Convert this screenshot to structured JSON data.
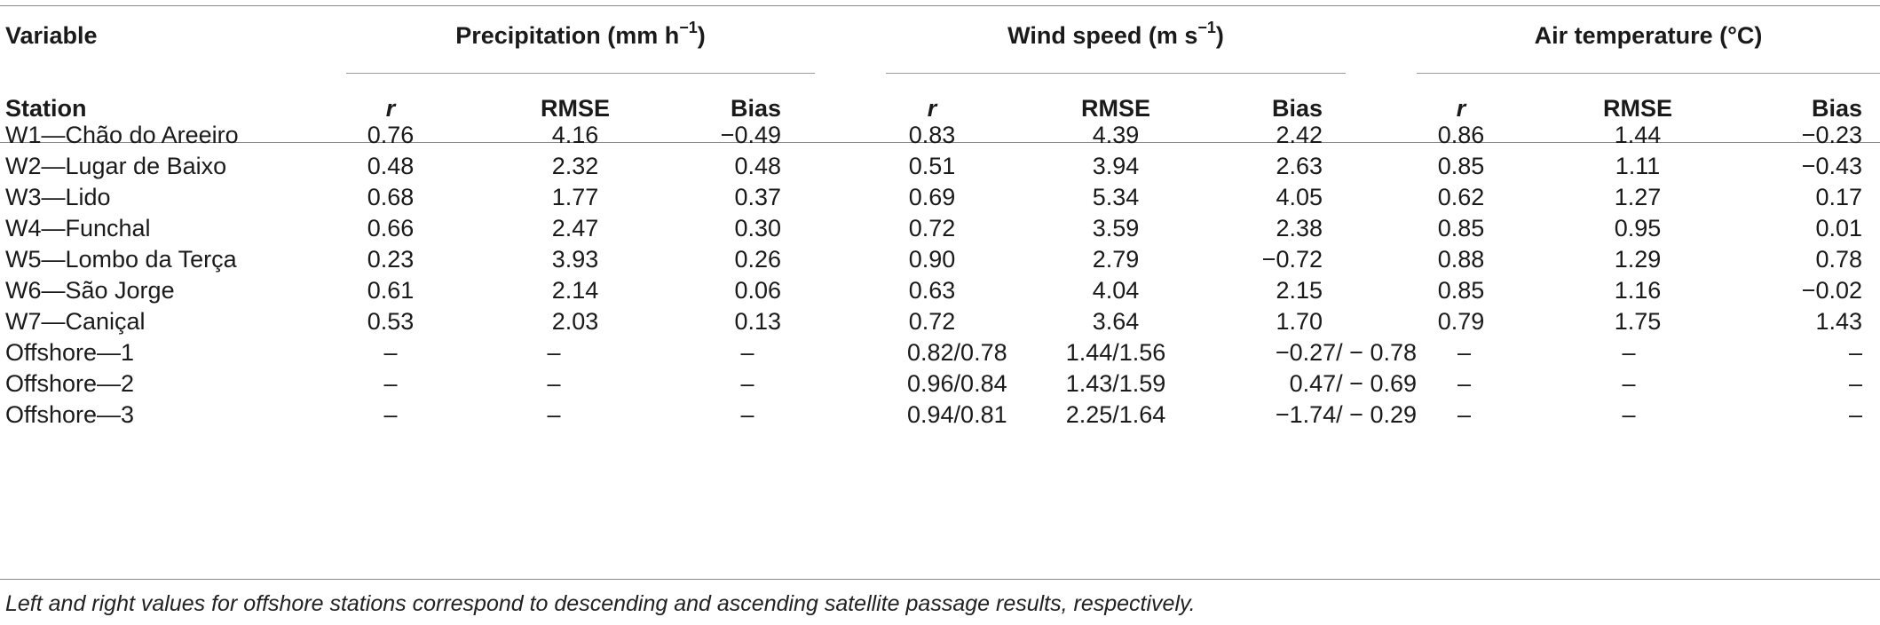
{
  "header": {
    "variable_label": "Variable",
    "station_label": "Station",
    "groups": [
      {
        "label": "Precipitation (mm h",
        "sup": "−1",
        "suffix": ")"
      },
      {
        "label": "Wind speed (m s",
        "sup": "−1",
        "suffix": ")"
      },
      {
        "label": "Air temperature (°C)",
        "sup": "",
        "suffix": ""
      }
    ],
    "subcols": [
      "r",
      "RMSE",
      "Bias",
      "r",
      "RMSE",
      "Bias",
      "r",
      "RMSE",
      "Bias"
    ]
  },
  "rows": [
    {
      "station": "W1—Chão do Areeiro",
      "vals": [
        "0.76",
        "4.16",
        "−0.49",
        "0.83",
        "4.39",
        "2.42",
        "0.86",
        "1.44",
        "−0.23"
      ]
    },
    {
      "station": "W2—Lugar de Baixo",
      "vals": [
        "0.48",
        "2.32",
        "0.48",
        "0.51",
        "3.94",
        "2.63",
        "0.85",
        "1.11",
        "−0.43"
      ]
    },
    {
      "station": "W3—Lido",
      "vals": [
        "0.68",
        "1.77",
        "0.37",
        "0.69",
        "5.34",
        "4.05",
        "0.62",
        "1.27",
        "0.17"
      ]
    },
    {
      "station": "W4—Funchal",
      "vals": [
        "0.66",
        "2.47",
        "0.30",
        "0.72",
        "3.59",
        "2.38",
        "0.85",
        "0.95",
        "0.01"
      ]
    },
    {
      "station": "W5—Lombo da Terça",
      "vals": [
        "0.23",
        "3.93",
        "0.26",
        "0.90",
        "2.79",
        "−0.72",
        "0.88",
        "1.29",
        "0.78"
      ]
    },
    {
      "station": "W6—São Jorge",
      "vals": [
        "0.61",
        "2.14",
        "0.06",
        "0.63",
        "4.04",
        "2.15",
        "0.85",
        "1.16",
        "−0.02"
      ]
    },
    {
      "station": "W7—Caniçal",
      "vals": [
        "0.53",
        "2.03",
        "0.13",
        "0.72",
        "3.64",
        "1.70",
        "0.79",
        "1.75",
        "1.43"
      ]
    },
    {
      "station": "Offshore—1",
      "vals": [
        "–",
        "–",
        "–",
        "0.82/0.78",
        "1.44/1.56",
        "−0.27/ − 0.78",
        "–",
        "–",
        "–"
      ]
    },
    {
      "station": "Offshore—2",
      "vals": [
        "–",
        "–",
        "–",
        "0.96/0.84",
        "1.43/1.59",
        "0.47/ − 0.69",
        "–",
        "–",
        "–"
      ]
    },
    {
      "station": "Offshore—3",
      "vals": [
        "–",
        "–",
        "–",
        "0.94/0.81",
        "2.25/1.64",
        "−1.74/ − 0.29",
        "–",
        "–",
        "–"
      ]
    }
  ],
  "footnote": "Left and right values for offshore stations correspond to descending and ascending satellite passage results, respectively."
}
